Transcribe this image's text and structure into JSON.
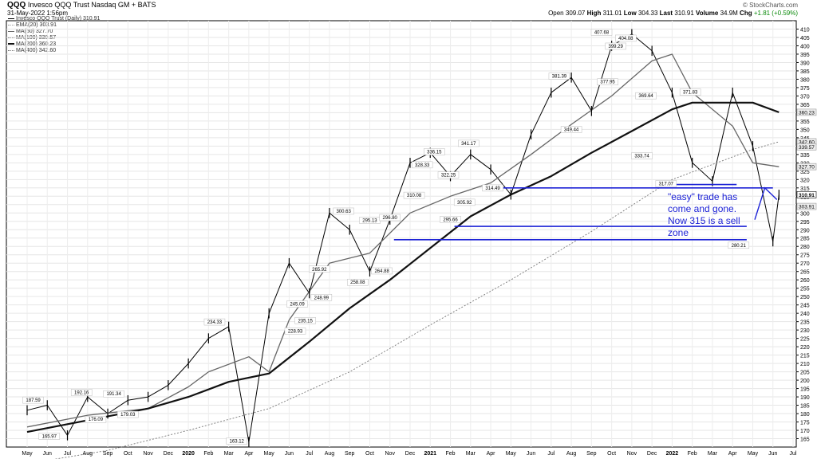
{
  "header": {
    "symbol": "QQQ",
    "name": "Invesco QQQ Trust",
    "exchange": "Nasdaq GM + BATS",
    "date": "31-May-2022 1:56pm",
    "watermark": "© StockCharts.com"
  },
  "quote": {
    "open_label": "Open",
    "open": "309.07",
    "high_label": "High",
    "high": "311.01",
    "low_label": "Low",
    "low": "304.33",
    "last_label": "Last",
    "last": "310.91",
    "volume_label": "Volume",
    "volume": "34.9M",
    "chg_label": "Chg",
    "chg": "+1.81 (+0.59%)"
  },
  "legend": [
    {
      "label": "Invesco QQQ Trust (Daily) 310.91",
      "color": "#000000"
    },
    {
      "label": "EMA(20) 303.91",
      "color": "#bbbbbb"
    },
    {
      "label": "MA(50) 327.70",
      "color": "#555555"
    },
    {
      "label": "MA(100) 339.57",
      "color": "#333333"
    },
    {
      "label": "MA(200) 360.23",
      "color": "#111111"
    },
    {
      "label": "MA(400) 342.60",
      "color": "#777777"
    }
  ],
  "annotation": {
    "text_line1": "\"easy\" trade has",
    "text_line2": "come and gone.",
    "text_line3": "Now 315 is a sell",
    "text_line4": "zone",
    "color": "#1c22d6"
  },
  "chart_data": {
    "type": "line",
    "title": "Invesco QQQ Trust (Daily)",
    "y_axis": {
      "side": "right",
      "ylim": [
        160,
        415
      ],
      "ticks": [
        165,
        170,
        175,
        180,
        185,
        190,
        195,
        200,
        205,
        210,
        215,
        220,
        225,
        230,
        235,
        240,
        245,
        250,
        255,
        260,
        265,
        270,
        275,
        280,
        285,
        290,
        295,
        300,
        305,
        310,
        315,
        320,
        325,
        330,
        335,
        340,
        345,
        350,
        355,
        360,
        365,
        370,
        375,
        380,
        385,
        390,
        395,
        400,
        405,
        410
      ]
    },
    "x_axis": {
      "labels": [
        "May",
        "Jun",
        "Jul",
        "Aug",
        "Sep",
        "Oct",
        "Nov",
        "Dec",
        "2020",
        "Feb",
        "Mar",
        "Apr",
        "May",
        "Jun",
        "Jul",
        "Aug",
        "Sep",
        "Oct",
        "Nov",
        "Dec",
        "2021",
        "Feb",
        "Mar",
        "Apr",
        "May",
        "Jun",
        "Jul",
        "Aug",
        "Sep",
        "Oct",
        "Nov",
        "Dec",
        "2022",
        "Feb",
        "Mar",
        "Apr",
        "May",
        "Jun",
        "Jul"
      ],
      "bold": [
        "2020",
        "2021",
        "2022"
      ]
    },
    "grid": true,
    "series": [
      {
        "name": "Invesco QQQ Trust (Daily)",
        "x": [
          0,
          1,
          2,
          3,
          4,
          5,
          6,
          7,
          8,
          9,
          10,
          11,
          12,
          13,
          14,
          15,
          16,
          17,
          18,
          19,
          20,
          21,
          22,
          23,
          24,
          25,
          26,
          27,
          28,
          29,
          30,
          31,
          32,
          33,
          34,
          35,
          36,
          37,
          37.3
        ],
        "values": [
          182,
          185,
          167,
          190,
          180,
          188,
          190,
          197,
          210,
          225,
          232,
          163,
          240,
          270,
          252,
          300,
          290,
          265,
          296,
          330,
          336,
          322,
          335,
          326,
          311,
          347,
          372,
          381,
          361,
          400,
          407,
          397,
          372,
          330,
          319,
          372,
          340,
          283,
          310.91
        ]
      },
      {
        "name": "MA(50)",
        "x": [
          0,
          3,
          6,
          8,
          9,
          11,
          12,
          13,
          15,
          17,
          19,
          21,
          23,
          25,
          27,
          29,
          31,
          32,
          33,
          35,
          36,
          37.3
        ],
        "values": [
          172,
          179,
          183,
          196,
          205,
          214,
          205,
          236,
          270,
          276,
          300,
          310,
          318,
          335,
          353,
          370,
          391,
          395,
          372,
          352,
          330,
          327.7
        ]
      },
      {
        "name": "MA(200)",
        "x": [
          0,
          3,
          6,
          8,
          10,
          12,
          14,
          16,
          18,
          20,
          22,
          24,
          26,
          28,
          30,
          32,
          33,
          35,
          36,
          37.3
        ],
        "values": [
          169,
          176,
          183,
          190,
          199,
          204,
          223,
          243,
          260,
          279,
          298,
          311,
          322,
          336,
          349,
          362,
          366,
          366,
          366,
          360.23
        ]
      },
      {
        "name": "MA(400)",
        "x": [
          0,
          4,
          8,
          12,
          16,
          20,
          24,
          28,
          32,
          36,
          37.3
        ],
        "values": [
          150,
          158,
          170,
          183,
          205,
          233,
          260,
          289,
          320,
          338,
          342.6
        ]
      }
    ],
    "price_labels": [
      {
        "x": 0.3,
        "y": 187.59,
        "text": "187.59"
      },
      {
        "x": 1.1,
        "y": 165.97,
        "text": "165.97"
      },
      {
        "x": 2.7,
        "y": 192.16,
        "text": "192.16"
      },
      {
        "x": 3.4,
        "y": 176.09,
        "text": "176.09"
      },
      {
        "x": 4.3,
        "y": 191.34,
        "text": "191.34"
      },
      {
        "x": 5.0,
        "y": 179.03,
        "text": "179.03"
      },
      {
        "x": 9.3,
        "y": 234.33,
        "text": "234.33"
      },
      {
        "x": 10.4,
        "y": 163.12,
        "text": "163.12"
      },
      {
        "x": 13.3,
        "y": 228.93,
        "text": "228.93"
      },
      {
        "x": 13.4,
        "y": 245.09,
        "text": "245.09"
      },
      {
        "x": 13.8,
        "y": 235.15,
        "text": "235.15"
      },
      {
        "x": 14.6,
        "y": 248.99,
        "text": "248.99"
      },
      {
        "x": 14.5,
        "y": 265.92,
        "text": "265.92"
      },
      {
        "x": 15.7,
        "y": 300.63,
        "text": "300.63"
      },
      {
        "x": 16.4,
        "y": 258.08,
        "text": "258.08"
      },
      {
        "x": 17.0,
        "y": 295.13,
        "text": "295.13"
      },
      {
        "x": 17.6,
        "y": 264.88,
        "text": "264.88"
      },
      {
        "x": 18.0,
        "y": 296.8,
        "text": "296.80"
      },
      {
        "x": 19.2,
        "y": 310.08,
        "text": "310.08"
      },
      {
        "x": 19.6,
        "y": 328.33,
        "text": "328.33"
      },
      {
        "x": 20.2,
        "y": 336.15,
        "text": "336.15"
      },
      {
        "x": 20.9,
        "y": 322.25,
        "text": "322.25"
      },
      {
        "x": 21.0,
        "y": 295.66,
        "text": "295.66"
      },
      {
        "x": 21.9,
        "y": 341.17,
        "text": "341.17"
      },
      {
        "x": 21.7,
        "y": 305.92,
        "text": "305.92"
      },
      {
        "x": 23.1,
        "y": 314.49,
        "text": "314.49"
      },
      {
        "x": 26.4,
        "y": 381.39,
        "text": "381.39"
      },
      {
        "x": 27.0,
        "y": 349.44,
        "text": "349.44"
      },
      {
        "x": 28.5,
        "y": 407.68,
        "text": "407.68"
      },
      {
        "x": 28.8,
        "y": 377.95,
        "text": "377.95"
      },
      {
        "x": 29.2,
        "y": 399.29,
        "text": "399.29"
      },
      {
        "x": 29.7,
        "y": 404.08,
        "text": "404.08"
      },
      {
        "x": 30.7,
        "y": 369.64,
        "text": "369.64"
      },
      {
        "x": 30.5,
        "y": 333.74,
        "text": "333.74"
      },
      {
        "x": 31.7,
        "y": 317.07,
        "text": "317.07"
      },
      {
        "x": 32.9,
        "y": 371.83,
        "text": "371.83"
      },
      {
        "x": 35.3,
        "y": 280.21,
        "text": "280.21"
      }
    ],
    "right_labels": [
      {
        "y": 360.23,
        "text": "360.23"
      },
      {
        "y": 342.6,
        "text": "342.60"
      },
      {
        "y": 339.57,
        "text": "339.57"
      },
      {
        "y": 327.7,
        "text": "327.70"
      },
      {
        "y": 310.91,
        "text": "310.91"
      },
      {
        "y": 303.91,
        "text": "303.91"
      }
    ],
    "horizontal_lines": [
      {
        "y": 315,
        "x0": 23.1,
        "x1": 37.0
      },
      {
        "y": 292,
        "x0": 21.2,
        "x1": 35.7
      },
      {
        "y": 284,
        "x0": 18.2,
        "x1": 35.7
      },
      {
        "y": 317,
        "x0": 31.3,
        "x1": 35.2
      }
    ]
  }
}
